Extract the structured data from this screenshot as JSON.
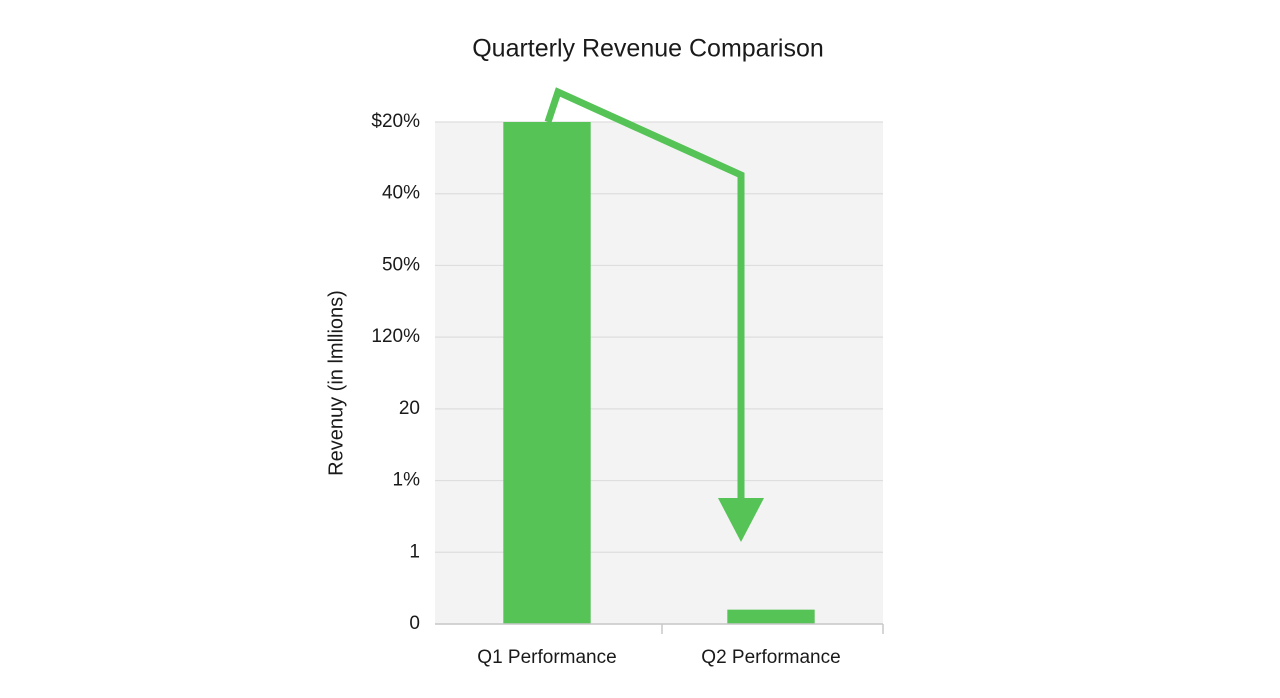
{
  "chart_data": {
    "type": "bar",
    "title": "Quarterly Revenue Comparison",
    "y_label": "Revenuy (in lmllions)",
    "categories": [
      "Q1 Performance",
      "Q2 Performance"
    ],
    "values": [
      7,
      0.2
    ],
    "color": "#55c356",
    "ylim": [
      0,
      7
    ],
    "yticks": [
      0,
      1,
      {
        "value": 2,
        "label": "1%"
      },
      {
        "value": 3,
        "label": "20"
      },
      {
        "value": 4,
        "label": "120%"
      },
      {
        "value": 5,
        "label": "50%"
      },
      {
        "value": 6,
        "label": "40%"
      },
      {
        "value": 7,
        "label": "$20%"
      }
    ],
    "grid": true
  }
}
